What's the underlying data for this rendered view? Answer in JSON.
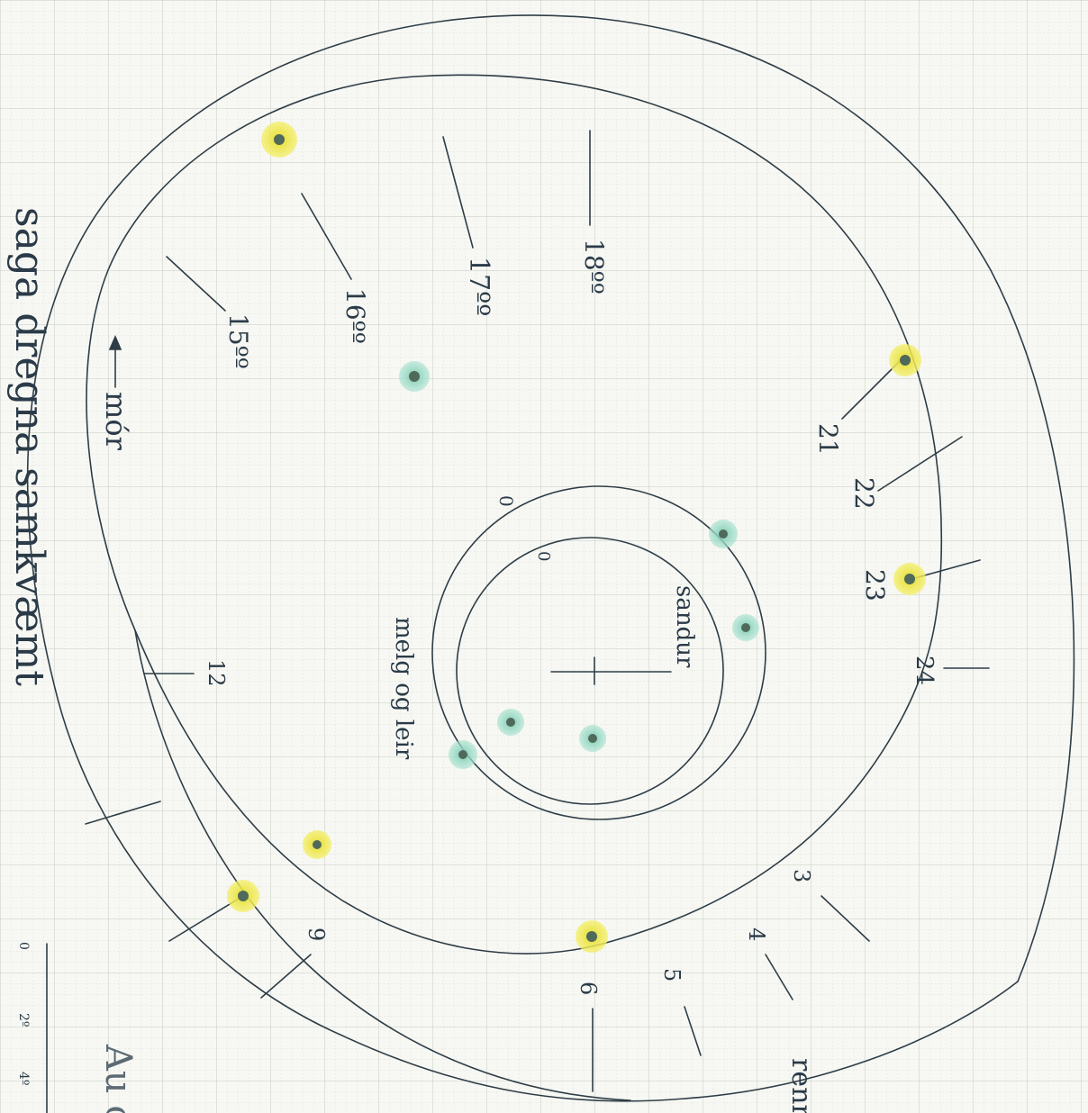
{
  "colors": {
    "paper": "#f7f8f3",
    "grid_minor": "#d9dcd6",
    "grid_major": "#c5cac3",
    "ink": "#2f3d47",
    "yellow_marker": "#f2ea3a",
    "teal_marker": "#8fd6c0",
    "dot_center": "#4f6a5a"
  },
  "labels": {
    "center_ticks_inner": "0",
    "center_ticks_outer": "0",
    "sandur": "sandur",
    "melgogleir": "melg og leir",
    "mor": "mór",
    "renn": "renn",
    "temp_15": "15ºº",
    "temp_16": "16ºº",
    "temp_17": "17ºº",
    "temp_18": "18ºº",
    "n21": "21",
    "n22": "22",
    "n23": "23",
    "n24": "24",
    "n3": "3",
    "n4": "4",
    "n5": "5",
    "n6": "6",
    "n9": "9",
    "n12": "12",
    "scale_0": "0",
    "scale_2": "2º",
    "scale_4": "4º",
    "edge_text_left": "saga dregna samkvæmt",
    "edge_text_bottom": "Au\ncið"
  },
  "markers": {
    "yellow": [
      "yellow-dot-1",
      "yellow-dot-2",
      "yellow-dot-3",
      "yellow-dot-4",
      "yellow-dot-5",
      "yellow-dot-6"
    ],
    "teal": [
      "teal-dot-1",
      "teal-dot-2",
      "teal-dot-3",
      "teal-dot-4",
      "teal-dot-5",
      "teal-dot-6"
    ]
  }
}
